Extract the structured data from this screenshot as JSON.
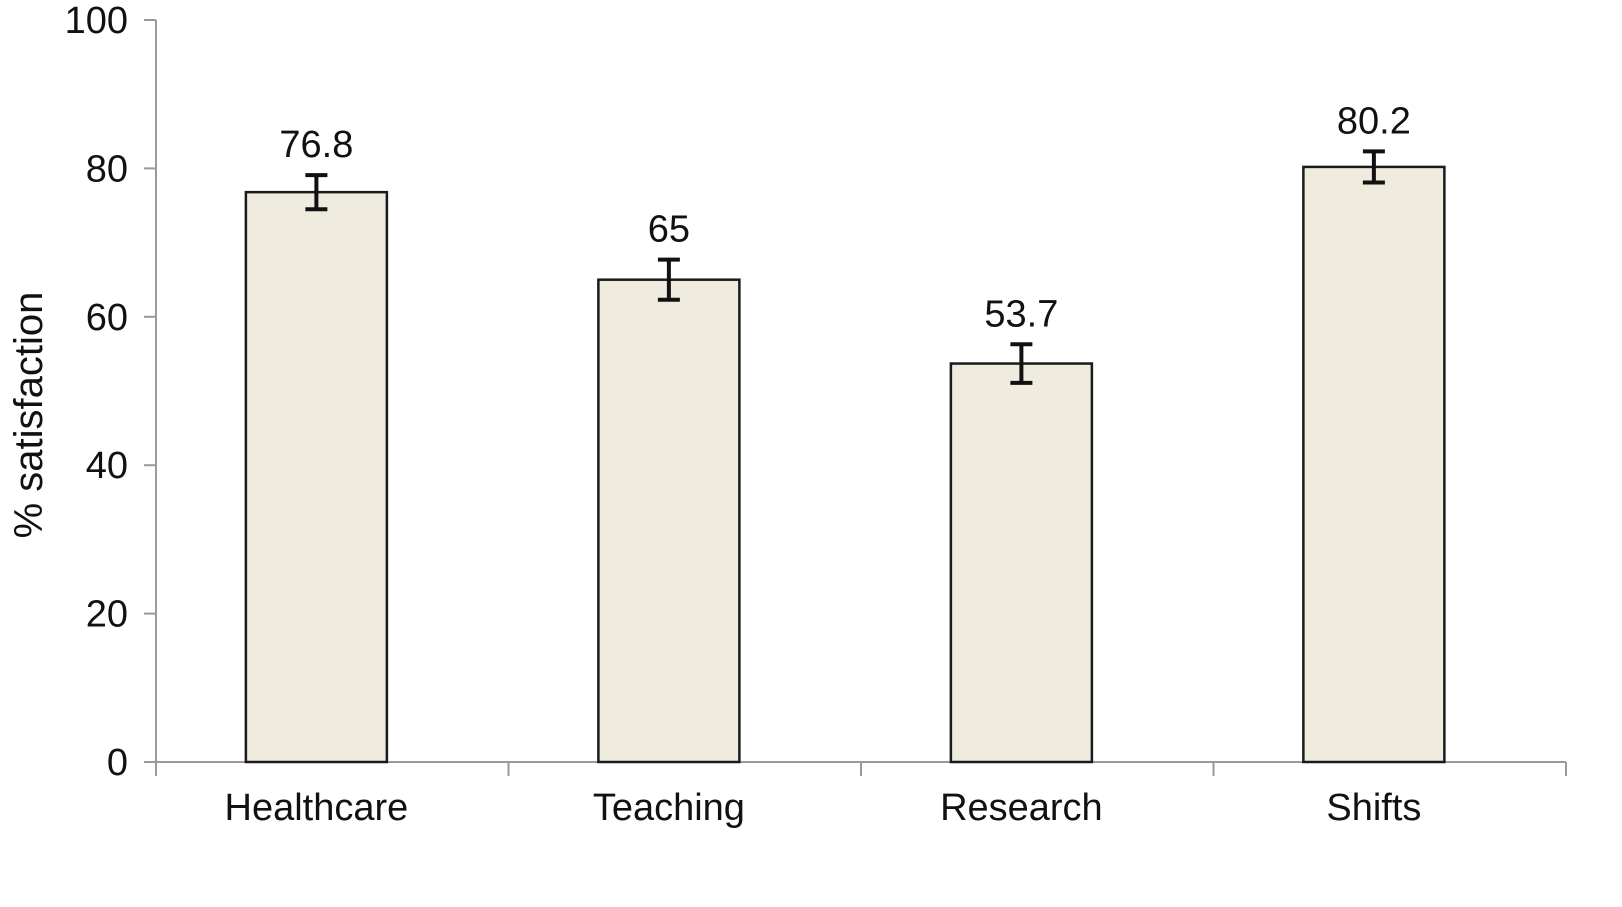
{
  "chart_data": {
    "type": "bar",
    "categories": [
      "Healthcare",
      "Teaching",
      "Research",
      "Shifts"
    ],
    "values": [
      76.8,
      65,
      53.7,
      80.2
    ],
    "value_labels": [
      "76.8",
      "65",
      "53.7",
      "80.2"
    ],
    "error": [
      2.3,
      2.7,
      2.6,
      2.1
    ],
    "title": "",
    "xlabel": "",
    "ylabel": "% satisfaction",
    "ylim": [
      0,
      100
    ],
    "yticks": [
      0,
      20,
      40,
      60,
      80,
      100
    ],
    "grid": false,
    "legend": "none",
    "colors": {
      "bar_fill": "#efebdf",
      "bar_stroke": "#1a1a1a",
      "axis": "#9a9a9a",
      "error_bar": "#111111"
    }
  }
}
